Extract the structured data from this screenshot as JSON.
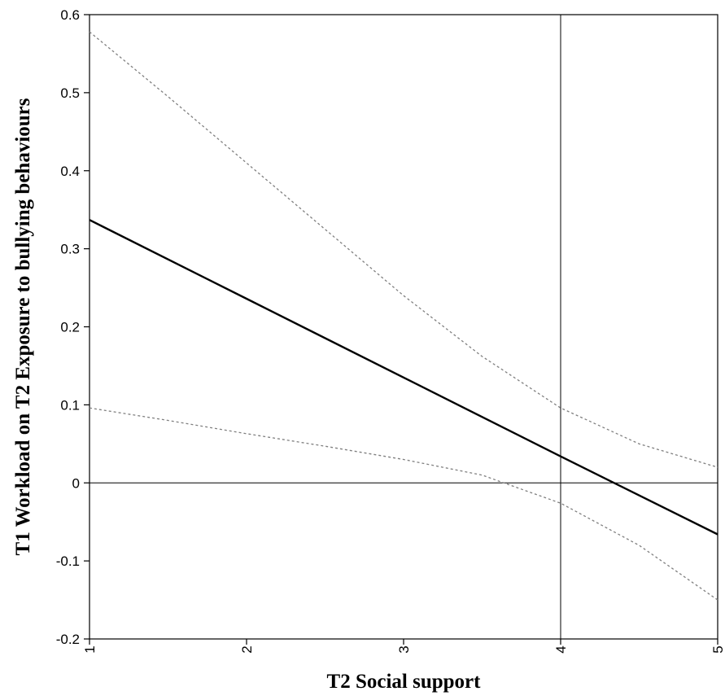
{
  "chart_data": {
    "type": "line",
    "title": "",
    "xlabel": "T2 Social support",
    "ylabel": "T1 Workload  on T2 Exposure  to bullying  behaviours",
    "xlim": [
      1,
      5
    ],
    "ylim": [
      -0.2,
      0.6
    ],
    "x_ticks": [
      1,
      2,
      3,
      4,
      5
    ],
    "x_tick_labels": [
      "1",
      "2",
      "3",
      "4",
      "5"
    ],
    "y_ticks": [
      -0.2,
      -0.1,
      0,
      0.1,
      0.2,
      0.3,
      0.4,
      0.5,
      0.6
    ],
    "y_tick_labels": [
      "-0.2",
      "-0.1",
      "0",
      "0.1",
      "0.2",
      "0.3",
      "0.4",
      "0.5",
      "0.6"
    ],
    "grid": false,
    "legend": "none",
    "reference_lines": {
      "x": 4.0,
      "y": 0
    },
    "series": [
      {
        "style": "solid",
        "color": "#000000",
        "x": [
          1,
          2,
          3,
          4,
          5
        ],
        "y": [
          0.337,
          0.236,
          0.135,
          0.034,
          -0.066
        ]
      },
      {
        "style": "dashed",
        "color": "#7f7f7f",
        "x": [
          1,
          1.5,
          2,
          2.5,
          3,
          3.5,
          4,
          4.5,
          5
        ],
        "y": [
          0.578,
          0.495,
          0.41,
          0.325,
          0.24,
          0.162,
          0.096,
          0.05,
          0.02
        ]
      },
      {
        "style": "dashed",
        "color": "#7f7f7f",
        "x": [
          1,
          1.5,
          2,
          2.5,
          3,
          3.5,
          4,
          4.5,
          5
        ],
        "y": [
          0.096,
          0.08,
          0.063,
          0.047,
          0.03,
          0.01,
          -0.026,
          -0.08,
          -0.15
        ]
      }
    ]
  }
}
